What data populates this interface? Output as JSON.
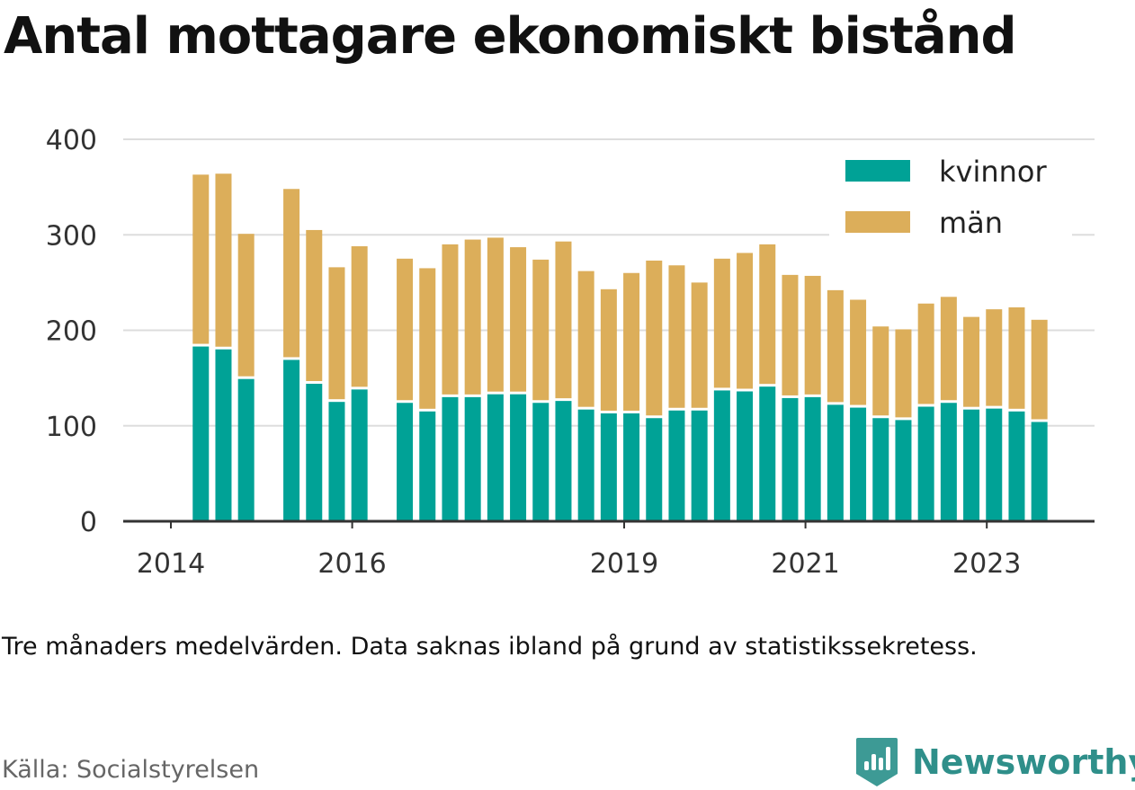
{
  "title": "Antal mottagare ekonomiskt bistånd",
  "subtitle": "Tre månaders medelvärden. Data saknas ibland på grund av statistikssekretess.",
  "source": "Källa: Socialstyrelsen",
  "brand": {
    "name": "Newsworthy",
    "icon": "newsworthy-logo-icon"
  },
  "colors": {
    "kvinnor": "#00a296",
    "man": "#dcae5a",
    "grid": "#dddddd",
    "axis": "#333333"
  },
  "chart_data": {
    "type": "bar",
    "stacked": true,
    "ylim": [
      0,
      400
    ],
    "yticks": [
      0,
      100,
      200,
      300,
      400
    ],
    "xticks": [
      {
        "label": "2014",
        "x": 2014.0
      },
      {
        "label": "2016",
        "x": 2016.0
      },
      {
        "label": "2019",
        "x": 2019.0
      },
      {
        "label": "2021",
        "x": 2021.0
      },
      {
        "label": "2023",
        "x": 2023.0
      }
    ],
    "xlim": [
      2013.5,
      2024.25
    ],
    "x": [
      2014.33,
      2014.58,
      2014.83,
      2015.33,
      2015.58,
      2015.83,
      2016.08,
      2016.58,
      2016.83,
      2017.08,
      2017.33,
      2017.58,
      2017.83,
      2018.08,
      2018.33,
      2018.58,
      2018.83,
      2019.08,
      2019.33,
      2019.58,
      2019.83,
      2020.08,
      2020.33,
      2020.58,
      2020.83,
      2021.08,
      2021.33,
      2021.58,
      2021.83,
      2022.08,
      2022.33,
      2022.58,
      2022.83,
      2023.08,
      2023.33,
      2023.58
    ],
    "legend": {
      "position": "top-right"
    },
    "grid": true,
    "series": [
      {
        "name": "kvinnor",
        "color": "#00a296",
        "values": [
          183,
          180,
          149,
          169,
          144,
          125,
          138,
          124,
          115,
          130,
          130,
          133,
          133,
          124,
          126,
          117,
          113,
          113,
          108,
          116,
          116,
          137,
          136,
          141,
          129,
          130,
          122,
          119,
          108,
          106,
          120,
          124,
          117,
          118,
          115,
          104
        ]
      },
      {
        "name": "män",
        "color": "#dcae5a",
        "values": [
          180,
          184,
          152,
          179,
          161,
          141,
          150,
          151,
          150,
          160,
          165,
          164,
          154,
          150,
          167,
          145,
          130,
          147,
          165,
          152,
          134,
          138,
          145,
          149,
          129,
          127,
          120,
          113,
          96,
          95,
          108,
          111,
          97,
          104,
          109,
          107
        ]
      }
    ]
  }
}
